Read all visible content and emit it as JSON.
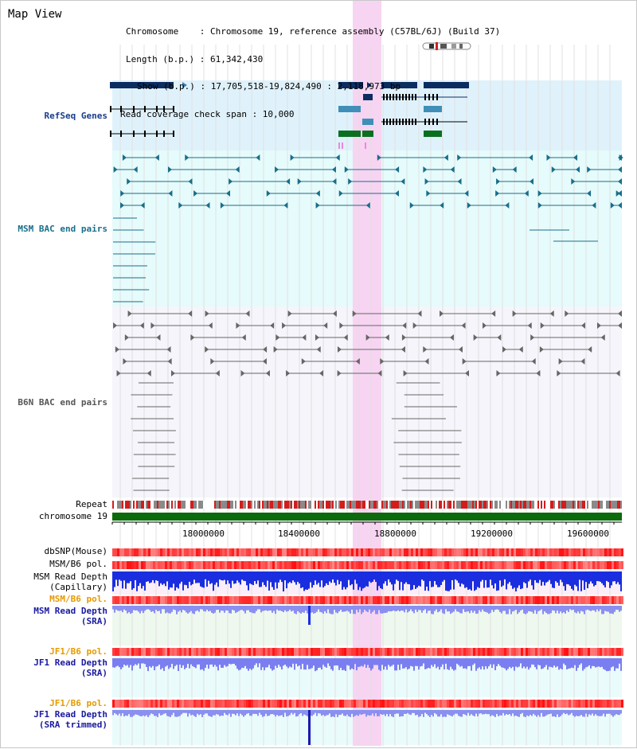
{
  "window": {
    "title": "Map View"
  },
  "info": {
    "chromosome": "Chromosome    : Chromosome 19, reference assembly (C57BL/6J) (Build 37)",
    "length": "Length (b.p.) : 61,342,430",
    "show": "Show (b.p.) : 17,705,518-19,824,490 : 2,118,973 bp",
    "span": "Read coverage check span : 10,000"
  },
  "tracks": {
    "refseq": {
      "label": "RefSeq Genes",
      "color": "#1a3d8a"
    },
    "msm_bac": {
      "label": "MSM BAC end pairs",
      "color": "#1a6e8a"
    },
    "b6n_bac": {
      "label": "B6N BAC end pairs",
      "color": "#555555"
    },
    "repeat": {
      "label": "Repeat"
    },
    "chromosome": {
      "label": "chromosome 19"
    },
    "dbsnp": {
      "label": "dbSNP(Mouse)"
    },
    "msm_b6_pol": {
      "label": "MSM/B6 pol."
    },
    "msm_read_cap": {
      "label1": "MSM Read Depth",
      "label2": "(Capillary)"
    },
    "msm_b6_pol2": {
      "label": "MSM/B6 pol.",
      "color": "#e69a00"
    },
    "msm_read_sra": {
      "label1": "MSM Read Depth",
      "label2": "(SRA)",
      "color": "#1a1aa0"
    },
    "jf1_b6_pol": {
      "label": "JF1/B6 pol.",
      "color": "#e69a00"
    },
    "jf1_read_sra": {
      "label1": "JF1 Read Depth",
      "label2": "(SRA)",
      "color": "#1a1aa0"
    },
    "jf1_b6_pol2": {
      "label": "JF1/B6 pol.",
      "color": "#e69a00"
    },
    "jf1_read_trim": {
      "label1": "JF1 Read Depth",
      "label2": "(SRA trimmed)",
      "color": "#1a1aa0"
    }
  },
  "axis": {
    "ticks": [
      "18000000",
      "18400000",
      "18800000",
      "19200000",
      "19600000"
    ]
  },
  "highlight_color": "#f7d4f2"
}
